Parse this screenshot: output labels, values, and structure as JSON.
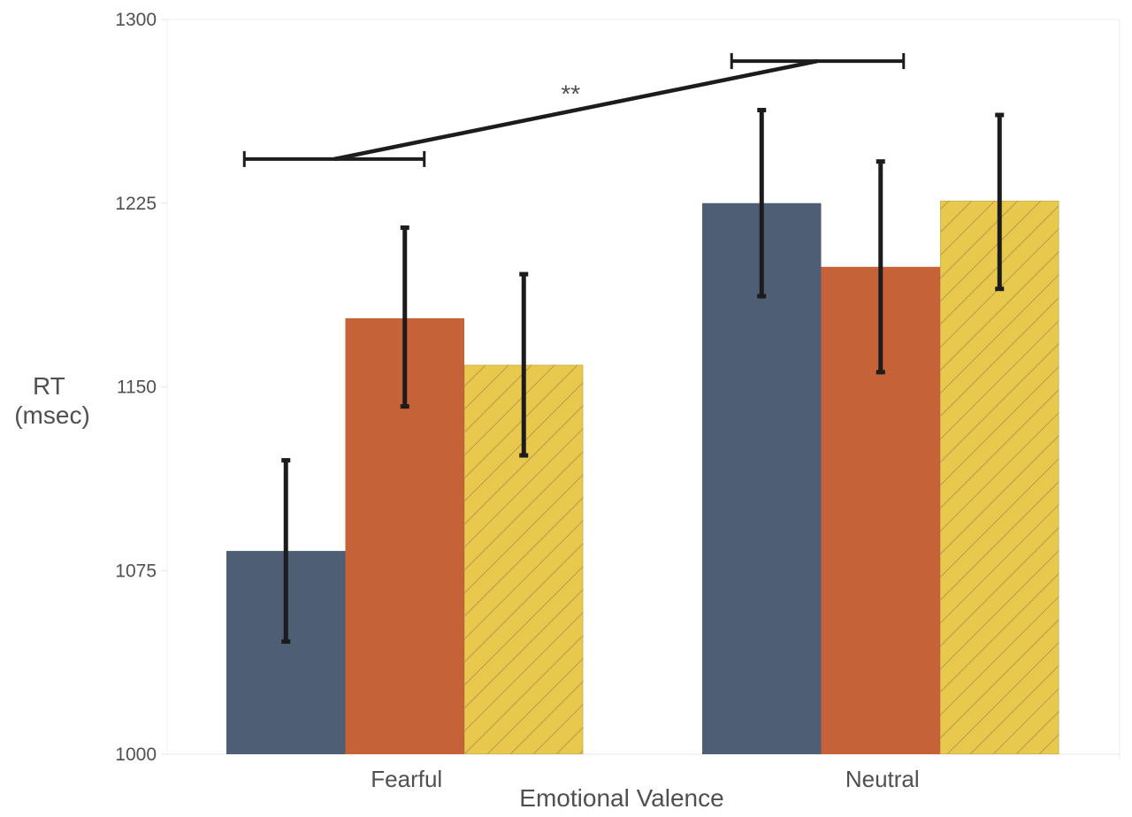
{
  "chart_data": {
    "type": "bar",
    "title": "",
    "xlabel": "Emotional Valence",
    "ylabel": [
      "RT",
      "(msec)"
    ],
    "ylim": [
      1000,
      1300
    ],
    "yticks": [
      1000,
      1075,
      1150,
      1225,
      1300
    ],
    "categories": [
      "Fearful",
      "Neutral"
    ],
    "grid": false,
    "legend": "none",
    "series": [
      {
        "color": "#4d5e75",
        "hatch": false,
        "values": [
          1083,
          1225
        ],
        "error_low": [
          1046,
          1187
        ],
        "error_high": [
          1120,
          1263
        ]
      },
      {
        "color": "#c66237",
        "hatch": false,
        "values": [
          1178,
          1199
        ],
        "error_low": [
          1142,
          1156
        ],
        "error_high": [
          1215,
          1242
        ]
      },
      {
        "color": "#e9c84e",
        "hatch": true,
        "values": [
          1159,
          1226
        ],
        "error_low": [
          1122,
          1190
        ],
        "error_high": [
          1196,
          1261
        ]
      }
    ],
    "significance": {
      "label": "**",
      "from_category": "Fearful",
      "to_category": "Neutral",
      "from_level": 1243,
      "to_level": 1283
    }
  }
}
